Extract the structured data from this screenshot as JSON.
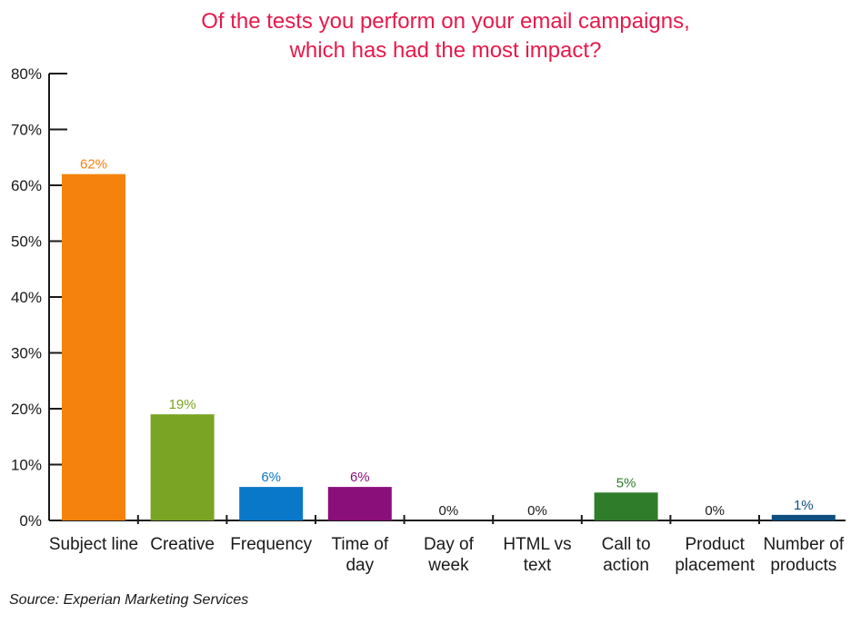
{
  "chart_data": {
    "type": "bar",
    "title_lines": [
      "Of the tests you perform on your email campaigns,",
      "which has had the most impact?"
    ],
    "categories": [
      [
        "Subject line"
      ],
      [
        "Creative"
      ],
      [
        "Frequency"
      ],
      [
        "Time of",
        "day"
      ],
      [
        "Day of",
        "week"
      ],
      [
        "HTML vs",
        "text"
      ],
      [
        "Call to",
        "action"
      ],
      [
        "Product",
        "placement"
      ],
      [
        "Number of",
        "products"
      ]
    ],
    "values": [
      62,
      19,
      6,
      6,
      0,
      0,
      5,
      0,
      1
    ],
    "value_labels": [
      "62%",
      "19%",
      "6%",
      "6%",
      "0%",
      "0%",
      "5%",
      "0%",
      "1%"
    ],
    "bar_colors": [
      "#f5820d",
      "#7aa423",
      "#0a78c8",
      "#8a0f7a",
      "#ffffff",
      "#ffffff",
      "#2f7d2a",
      "#ffffff",
      "#0d4f80"
    ],
    "label_colors": [
      "#f5820d",
      "#7aa423",
      "#0a78c8",
      "#8a0f7a",
      "#1a1a1a",
      "#1a1a1a",
      "#2f7d2a",
      "#1a1a1a",
      "#0d4f80"
    ],
    "ylim": [
      0,
      80
    ],
    "yticks": [
      0,
      10,
      20,
      30,
      40,
      50,
      60,
      70,
      80
    ],
    "ytick_labels": [
      "0%",
      "10%",
      "20%",
      "30%",
      "40%",
      "50%",
      "60%",
      "70%",
      "80%"
    ],
    "grid": false,
    "legend": "none",
    "colors": {
      "title": "#e6194b",
      "axis": "#1a1a1a"
    }
  },
  "source": "Source: Experian Marketing Services"
}
